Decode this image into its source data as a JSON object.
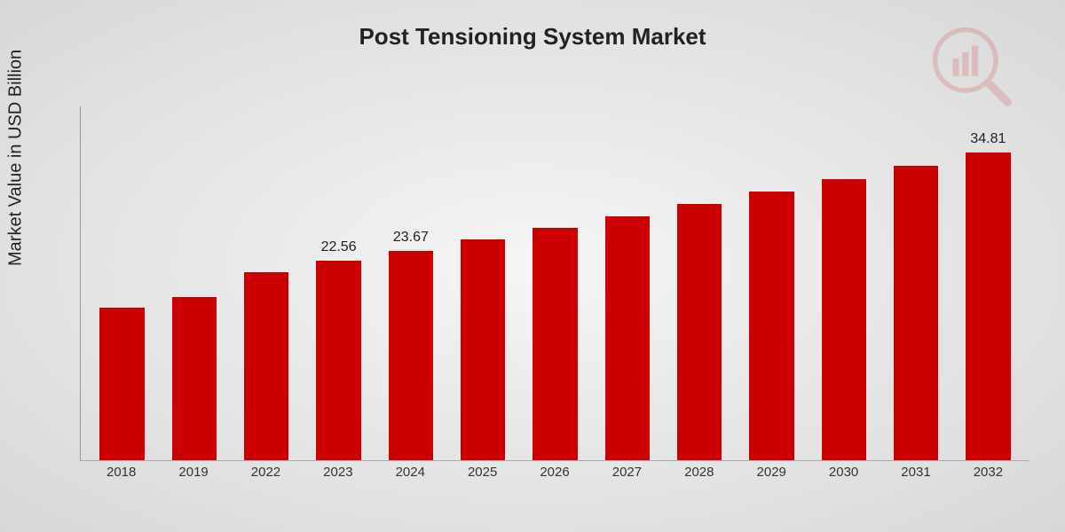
{
  "chart": {
    "type": "bar",
    "title": "Post Tensioning System Market",
    "title_fontsize": 26,
    "ylabel": "Market Value in USD Billion",
    "ylabel_fontsize": 20,
    "background": "radial-gradient #f5f5f5 to #d8d8d8",
    "bar_color": "#cc0000",
    "axis_color": "#999999",
    "text_color": "#222222",
    "xtick_fontsize": 15,
    "value_label_fontsize": 16,
    "ylim": [
      0,
      40
    ],
    "bar_width_ratio": 0.62,
    "categories": [
      "2018",
      "2019",
      "2022",
      "2023",
      "2024",
      "2025",
      "2026",
      "2027",
      "2028",
      "2029",
      "2030",
      "2031",
      "2032"
    ],
    "values": [
      17.2,
      18.4,
      21.3,
      22.56,
      23.67,
      25.0,
      26.3,
      27.6,
      29.0,
      30.4,
      31.8,
      33.3,
      34.81
    ],
    "value_labels": [
      "",
      "",
      "",
      "22.56",
      "23.67",
      "",
      "",
      "",
      "",
      "",
      "",
      "",
      "34.81"
    ],
    "watermark": {
      "icon": "magnifier-bars",
      "color": "#cc0000",
      "opacity": 0.15
    }
  }
}
